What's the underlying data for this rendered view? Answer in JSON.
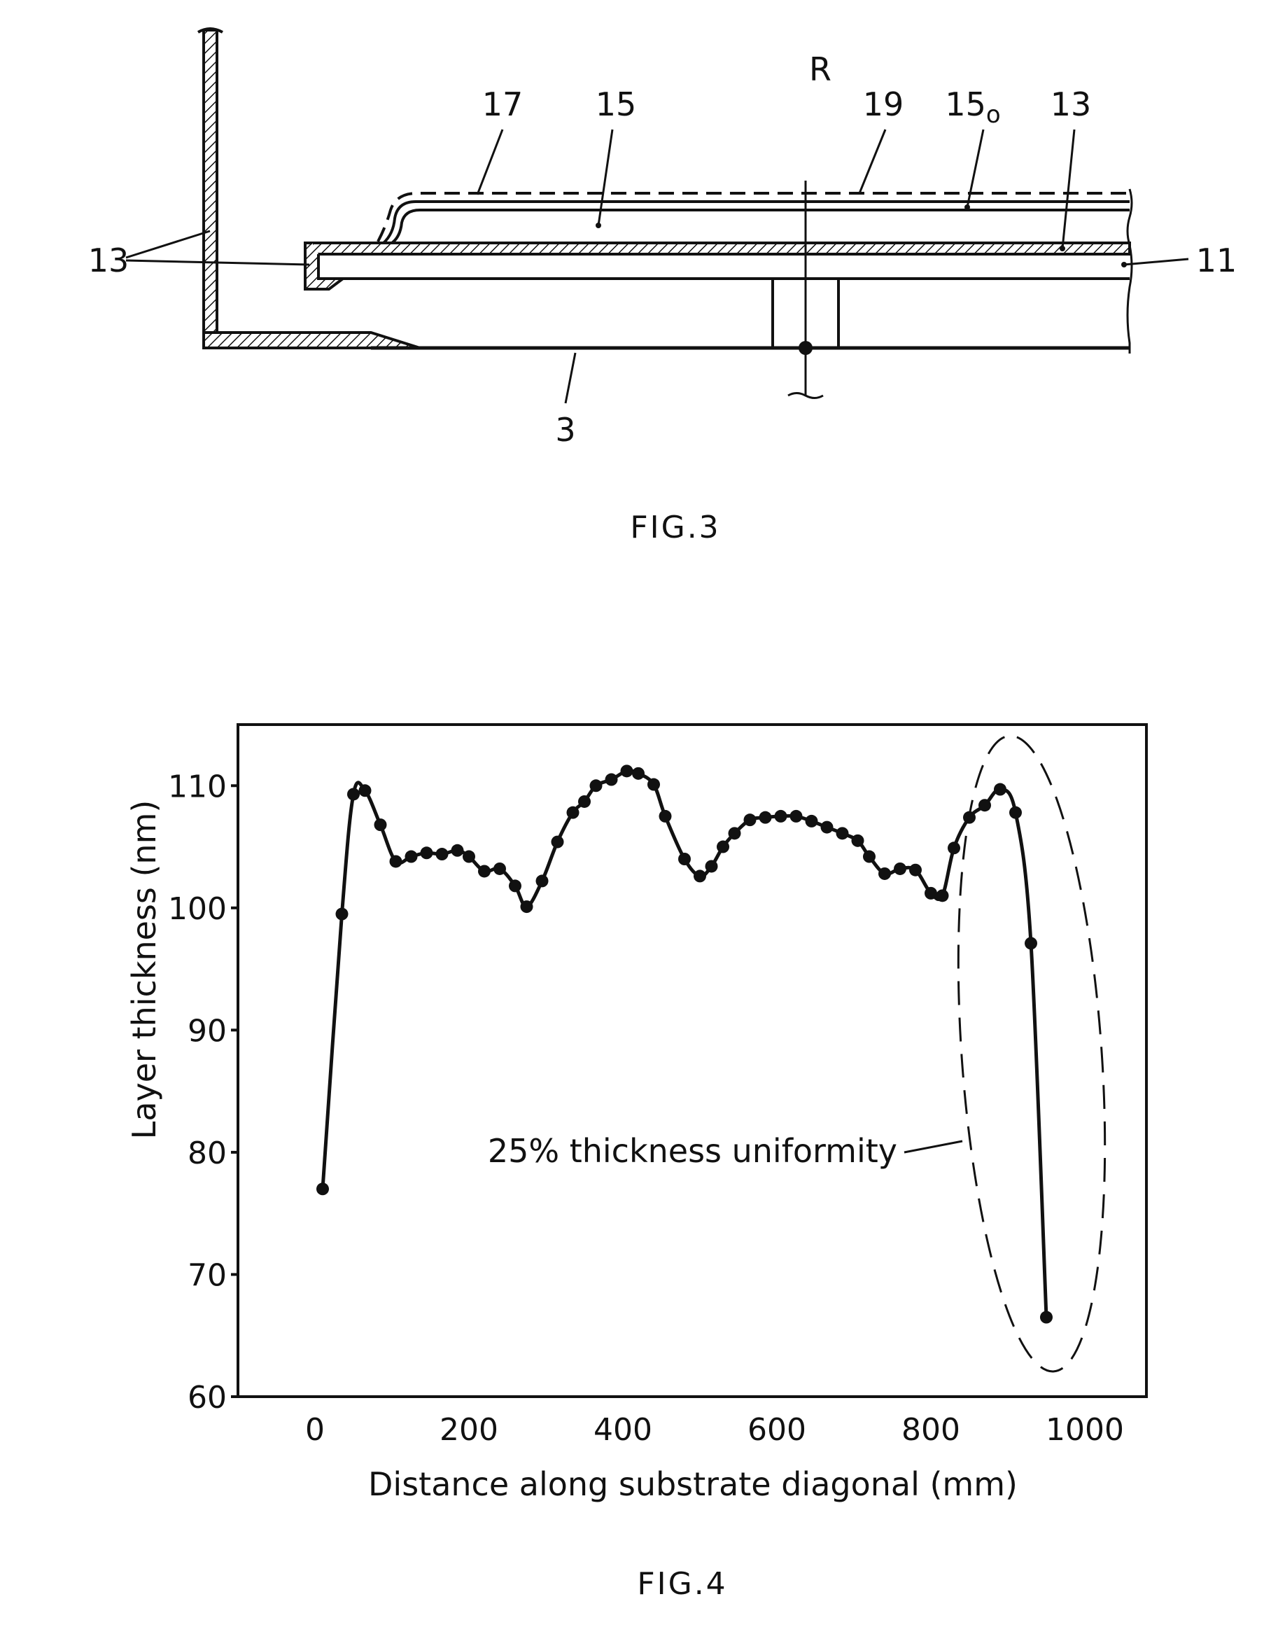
{
  "fig3": {
    "caption": "FIG.3",
    "labels": {
      "R": "R",
      "l17": "17",
      "l15": "15",
      "l19": "19",
      "l15o_main": "15",
      "l15o_sub": "o",
      "l13_top": "13",
      "l13_left": "13",
      "l11": "11",
      "l3": "3"
    }
  },
  "fig4": {
    "caption": "FIG.4",
    "annotation": "25% thickness uniformity"
  },
  "chart_data": {
    "type": "line",
    "xlabel": "Distance along substrate diagonal (mm)",
    "ylabel": "Layer thickness (nm)",
    "xlim": [
      -100,
      1080
    ],
    "ylim": [
      60,
      115
    ],
    "xticks": [
      0,
      200,
      400,
      600,
      800,
      1000
    ],
    "yticks": [
      60,
      70,
      80,
      90,
      100,
      110
    ],
    "grid": false,
    "series": [
      {
        "x": [
          10,
          35,
          50,
          65,
          85,
          105,
          125,
          145,
          165,
          185,
          200,
          220,
          240,
          260,
          275,
          295,
          315,
          335,
          350,
          365,
          385,
          405,
          420,
          440,
          455,
          480,
          500,
          515,
          530,
          545,
          565,
          585,
          605,
          625,
          645,
          665,
          685,
          705,
          720,
          740,
          760,
          780,
          800,
          815,
          830,
          850,
          870,
          890,
          910,
          930,
          950
        ],
        "y": [
          77,
          99.5,
          109.3,
          109.6,
          106.8,
          103.8,
          104.2,
          104.5,
          104.4,
          104.7,
          104.2,
          103,
          103.2,
          101.8,
          100.1,
          102.2,
          105.4,
          107.8,
          108.7,
          110,
          110.5,
          111.2,
          111,
          110.1,
          107.5,
          104,
          102.6,
          103.4,
          105,
          106.1,
          107.2,
          107.4,
          107.5,
          107.5,
          107.1,
          106.6,
          106.1,
          105.5,
          104.2,
          102.8,
          103.2,
          103.1,
          101.2,
          101,
          104.9,
          107.4,
          108.4,
          109.7,
          107.8,
          97.1,
          66.5
        ]
      }
    ]
  }
}
